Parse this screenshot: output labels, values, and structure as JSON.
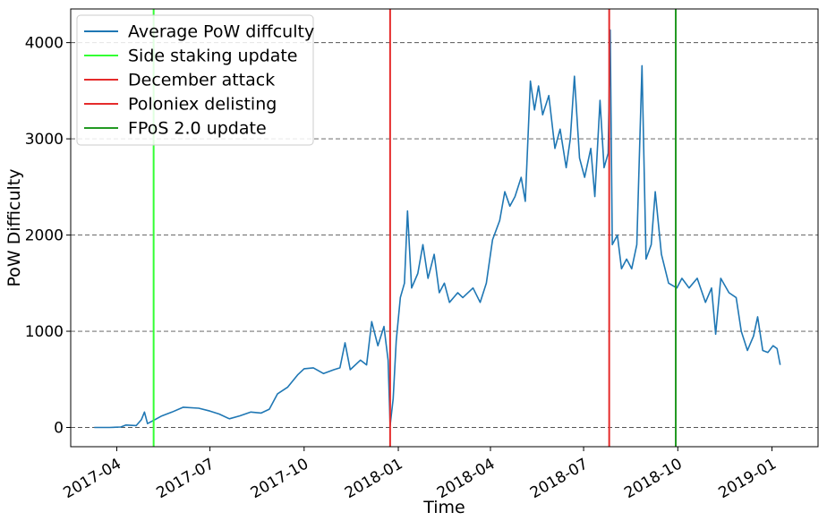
{
  "chart_data": {
    "type": "line",
    "xlabel": "Time",
    "ylabel": "PoW Difficulty",
    "x_range": [
      "2017-02-15",
      "2019-02-15"
    ],
    "ylim": [
      -200,
      4350
    ],
    "grid": "horizontal dashed",
    "legend_placement": "top-left",
    "x_ticks": [
      "2017-04",
      "2017-07",
      "2017-10",
      "2018-01",
      "2018-04",
      "2018-07",
      "2018-10",
      "2019-01"
    ],
    "y_ticks": [
      0,
      1000,
      2000,
      3000,
      4000
    ],
    "series": [
      {
        "name": "Average PoW diffculty",
        "color": "#1f77b4",
        "points": [
          [
            "2017-03-10",
            0
          ],
          [
            "2017-03-25",
            0
          ],
          [
            "2017-04-05",
            5
          ],
          [
            "2017-04-10",
            25
          ],
          [
            "2017-04-20",
            20
          ],
          [
            "2017-04-25",
            80
          ],
          [
            "2017-04-28",
            160
          ],
          [
            "2017-05-01",
            40
          ],
          [
            "2017-05-08",
            80
          ],
          [
            "2017-05-15",
            120
          ],
          [
            "2017-05-25",
            160
          ],
          [
            "2017-06-05",
            210
          ],
          [
            "2017-06-20",
            200
          ],
          [
            "2017-07-01",
            170
          ],
          [
            "2017-07-10",
            140
          ],
          [
            "2017-07-20",
            90
          ],
          [
            "2017-07-30",
            120
          ],
          [
            "2017-08-10",
            160
          ],
          [
            "2017-08-20",
            150
          ],
          [
            "2017-08-28",
            190
          ],
          [
            "2017-09-05",
            350
          ],
          [
            "2017-09-15",
            420
          ],
          [
            "2017-09-25",
            550
          ],
          [
            "2017-10-01",
            610
          ],
          [
            "2017-10-10",
            620
          ],
          [
            "2017-10-20",
            560
          ],
          [
            "2017-10-30",
            600
          ],
          [
            "2017-11-05",
            620
          ],
          [
            "2017-11-10",
            880
          ],
          [
            "2017-11-15",
            600
          ],
          [
            "2017-11-25",
            700
          ],
          [
            "2017-12-01",
            650
          ],
          [
            "2017-12-06",
            1100
          ],
          [
            "2017-12-12",
            850
          ],
          [
            "2017-12-18",
            1050
          ],
          [
            "2017-12-22",
            700
          ],
          [
            "2017-12-24",
            20
          ],
          [
            "2017-12-27",
            300
          ],
          [
            "2017-12-30",
            900
          ],
          [
            "2018-01-03",
            1350
          ],
          [
            "2018-01-07",
            1500
          ],
          [
            "2018-01-10",
            2250
          ],
          [
            "2018-01-14",
            1450
          ],
          [
            "2018-01-20",
            1600
          ],
          [
            "2018-01-25",
            1900
          ],
          [
            "2018-01-30",
            1550
          ],
          [
            "2018-02-05",
            1800
          ],
          [
            "2018-02-10",
            1400
          ],
          [
            "2018-02-15",
            1500
          ],
          [
            "2018-02-20",
            1300
          ],
          [
            "2018-02-28",
            1400
          ],
          [
            "2018-03-05",
            1350
          ],
          [
            "2018-03-15",
            1450
          ],
          [
            "2018-03-22",
            1300
          ],
          [
            "2018-03-28",
            1500
          ],
          [
            "2018-04-03",
            1950
          ],
          [
            "2018-04-10",
            2150
          ],
          [
            "2018-04-15",
            2450
          ],
          [
            "2018-04-20",
            2300
          ],
          [
            "2018-04-25",
            2400
          ],
          [
            "2018-05-01",
            2600
          ],
          [
            "2018-05-05",
            2350
          ],
          [
            "2018-05-10",
            3600
          ],
          [
            "2018-05-14",
            3300
          ],
          [
            "2018-05-18",
            3550
          ],
          [
            "2018-05-22",
            3250
          ],
          [
            "2018-05-28",
            3450
          ],
          [
            "2018-06-03",
            2900
          ],
          [
            "2018-06-08",
            3100
          ],
          [
            "2018-06-14",
            2700
          ],
          [
            "2018-06-18",
            3000
          ],
          [
            "2018-06-22",
            3650
          ],
          [
            "2018-06-27",
            2800
          ],
          [
            "2018-07-02",
            2600
          ],
          [
            "2018-07-08",
            2900
          ],
          [
            "2018-07-12",
            2400
          ],
          [
            "2018-07-17",
            3400
          ],
          [
            "2018-07-21",
            2700
          ],
          [
            "2018-07-25",
            2850
          ],
          [
            "2018-07-27",
            4130
          ],
          [
            "2018-07-29",
            1900
          ],
          [
            "2018-08-03",
            2000
          ],
          [
            "2018-08-07",
            1650
          ],
          [
            "2018-08-12",
            1750
          ],
          [
            "2018-08-17",
            1650
          ],
          [
            "2018-08-22",
            1900
          ],
          [
            "2018-08-27",
            3760
          ],
          [
            "2018-08-31",
            1750
          ],
          [
            "2018-09-05",
            1900
          ],
          [
            "2018-09-09",
            2450
          ],
          [
            "2018-09-15",
            1800
          ],
          [
            "2018-09-22",
            1500
          ],
          [
            "2018-09-30",
            1450
          ],
          [
            "2018-10-05",
            1550
          ],
          [
            "2018-10-12",
            1450
          ],
          [
            "2018-10-20",
            1550
          ],
          [
            "2018-10-28",
            1300
          ],
          [
            "2018-11-03",
            1450
          ],
          [
            "2018-11-07",
            970
          ],
          [
            "2018-11-12",
            1550
          ],
          [
            "2018-11-20",
            1400
          ],
          [
            "2018-11-27",
            1350
          ],
          [
            "2018-12-02",
            1000
          ],
          [
            "2018-12-08",
            800
          ],
          [
            "2018-12-14",
            950
          ],
          [
            "2018-12-18",
            1150
          ],
          [
            "2018-12-23",
            800
          ],
          [
            "2018-12-28",
            780
          ],
          [
            "2019-01-02",
            850
          ],
          [
            "2019-01-06",
            820
          ],
          [
            "2019-01-09",
            650
          ]
        ]
      }
    ],
    "events": [
      {
        "name": "Side staking update",
        "date": "2017-05-07",
        "color": "#33ff33"
      },
      {
        "name": "December attack",
        "date": "2017-12-24",
        "color": "#e52b2b"
      },
      {
        "name": "Poloniex delisting",
        "date": "2018-07-26",
        "color": "#e52b2b"
      },
      {
        "name": "FPoS 2.0 update",
        "date": "2018-09-29",
        "color": "#229922"
      }
    ]
  }
}
